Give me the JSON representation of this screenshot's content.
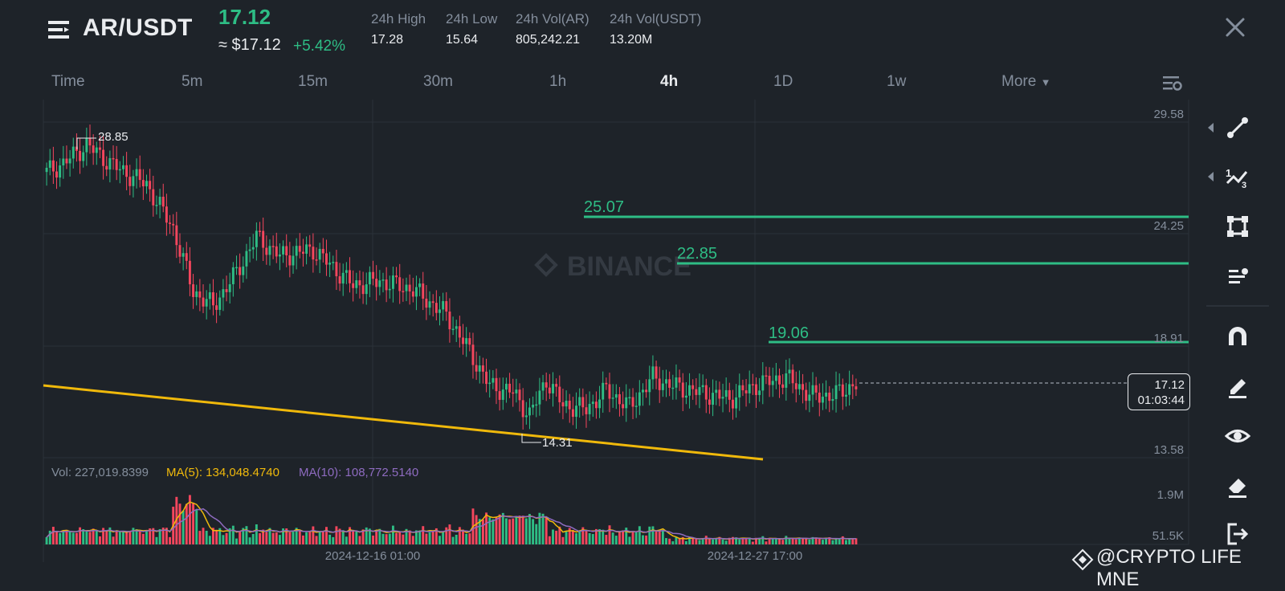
{
  "header": {
    "pair": "AR/USDT",
    "price": "17.12",
    "approx_price": "≈ $17.12",
    "change": "+5.42%",
    "stats": [
      {
        "label": "24h High",
        "value": "17.28"
      },
      {
        "label": "24h Low",
        "value": "15.64"
      },
      {
        "label": "24h Vol(AR)",
        "value": "805,242.21"
      },
      {
        "label": "24h Vol(USDT)",
        "value": "13.20M"
      }
    ]
  },
  "timeframes": [
    "Time",
    "5m",
    "15m",
    "30m",
    "1h",
    "4h",
    "1D",
    "1w"
  ],
  "active_timeframe": "4h",
  "more_label": "More",
  "chart": {
    "price_axis": [
      "29.58",
      "24.25",
      "18.91",
      "13.58"
    ],
    "volume_axis": [
      "1.9M",
      "51.5K"
    ],
    "time_axis": [
      "2024-12-16 01:00",
      "2024-12-27 17:00"
    ],
    "high_marker": "28.85",
    "low_marker": "14.31",
    "last_price": "17.12",
    "countdown": "01:03:44",
    "watermark": "BINANCE",
    "levels": [
      "25.07",
      "22.85",
      "19.06"
    ],
    "vol_legend": {
      "vol": "Vol: 227,019.8399",
      "ma5": "MA(5): 134,048.4740",
      "ma10": "MA(10): 108,772.5140"
    },
    "colors": {
      "up": "#2ebd85",
      "down": "#f6465d",
      "trend": "#f0b90b",
      "ma5": "#f0b90b",
      "ma10": "#8e6bc0"
    }
  },
  "user_watermark": "@CRYPTO LIFE MNE"
}
